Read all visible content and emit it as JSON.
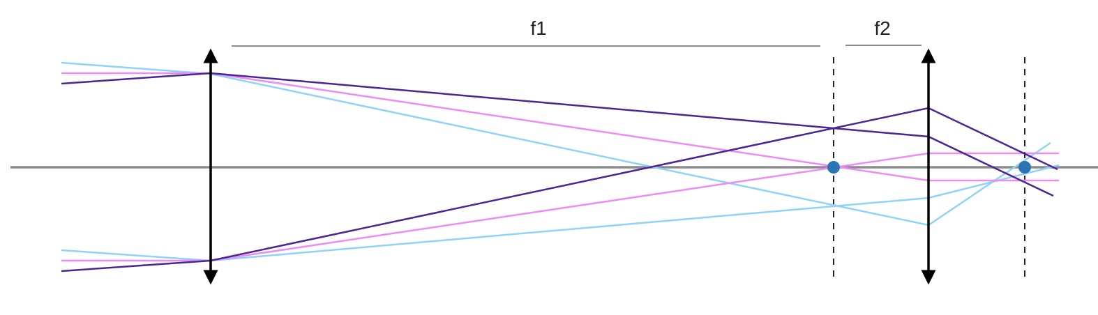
{
  "labels": {
    "f1": "f1",
    "f2": "f2"
  },
  "colors": {
    "axis": "#8c8c8c",
    "lens": "#000000",
    "dimension": "#8c8c8c",
    "focal_plane": "#222222",
    "focal_point": "#2a74b4",
    "ray_outer": "#8fd3f7",
    "ray_middle": "#ec8bf2",
    "ray_inner": "#4b2594"
  }
}
